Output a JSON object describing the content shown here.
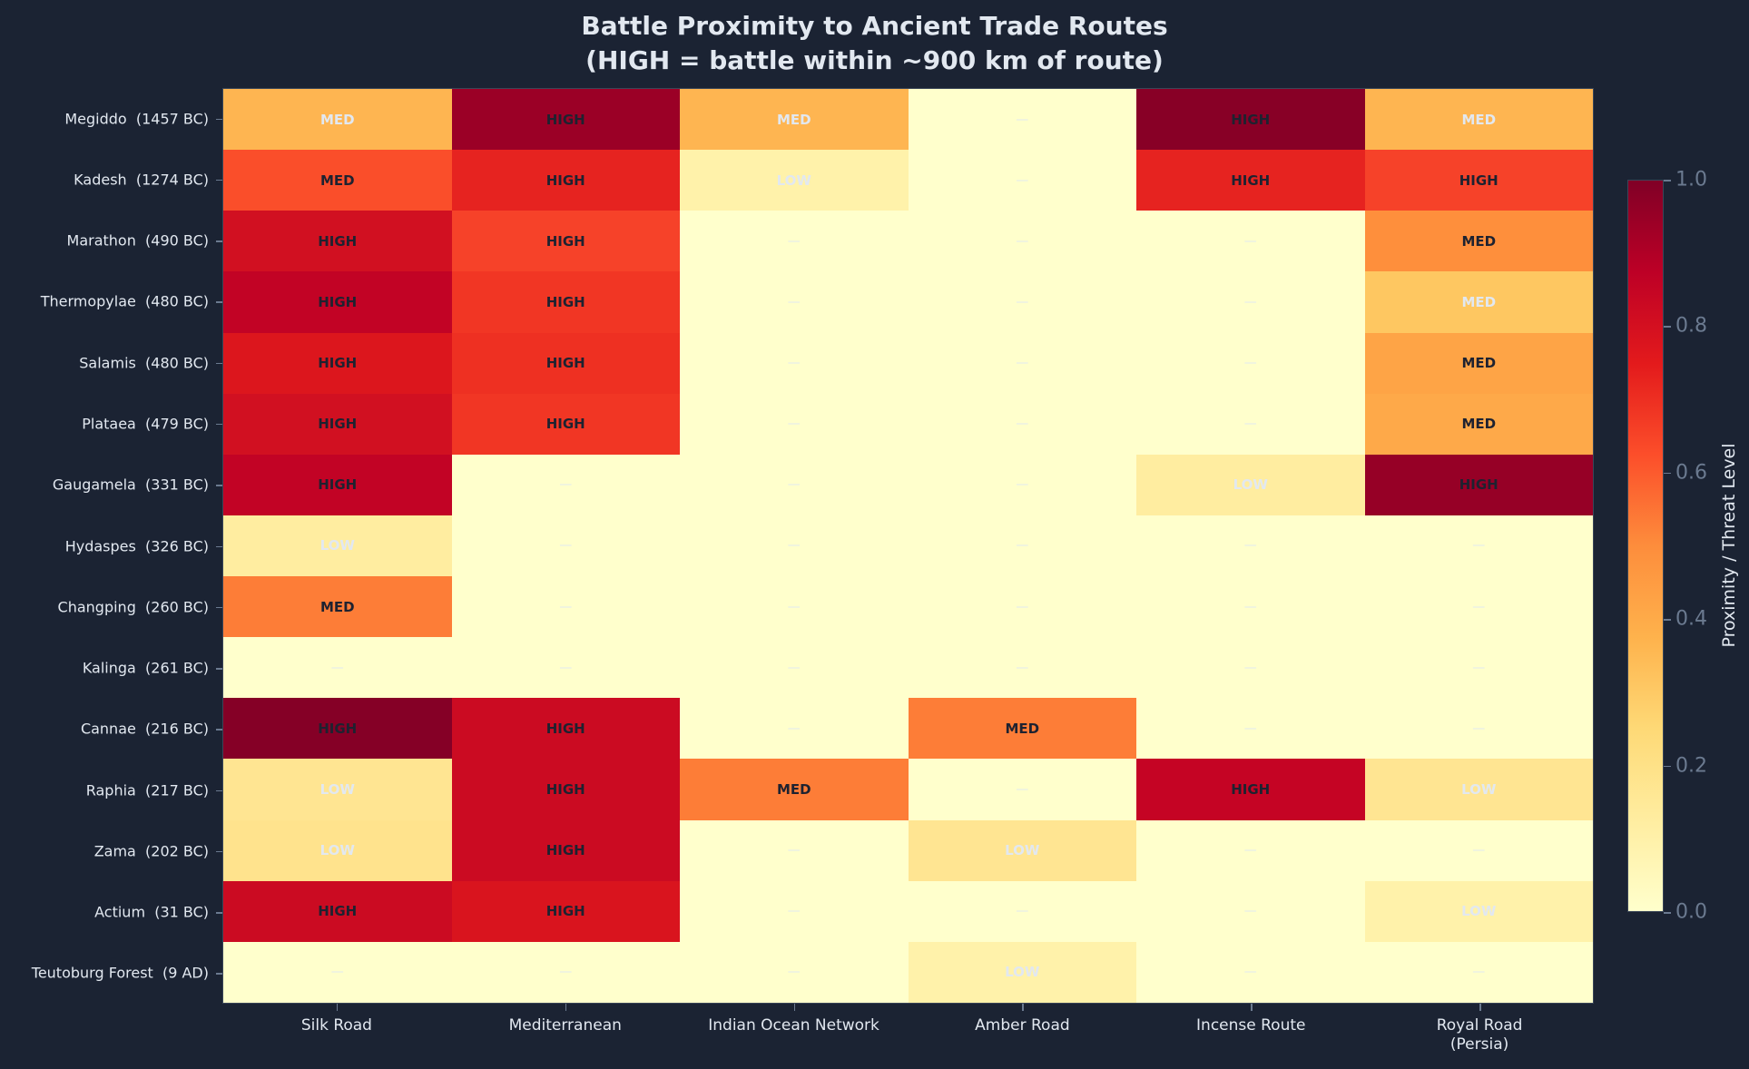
{
  "title_line1": "Battle Proximity to Ancient Trade Routes",
  "title_line2": "(HIGH = battle within ~900 km of route)",
  "colorbar": {
    "label": "Proximity / Threat Level",
    "ticks": [
      "0.0",
      "0.2",
      "0.4",
      "0.6",
      "0.8",
      "1.0"
    ],
    "colormap": "YlOrRd"
  },
  "colors": {
    "background": "#1b2333",
    "text_light": "#e2e8f0",
    "text_dark": "#1e2230",
    "axis": "#6b7a90"
  },
  "chart_data": {
    "type": "heatmap",
    "title": "Battle Proximity to Ancient Trade Routes\n(HIGH = battle within ~900 km of route)",
    "xlabel": "",
    "ylabel": "",
    "colorbar_label": "Proximity / Threat Level",
    "vmin": 0.0,
    "vmax": 1.0,
    "columns": [
      "Silk Road",
      "Mediterranean",
      "Indian Ocean Network",
      "Amber Road",
      "Incense Route",
      "Royal Road\n(Persia)"
    ],
    "rows": [
      "Megiddo  (1457 BC)",
      "Kadesh  (1274 BC)",
      "Marathon  (490 BC)",
      "Thermopylae  (480 BC)",
      "Salamis  (480 BC)",
      "Plataea  (479 BC)",
      "Gaugamela  (331 BC)",
      "Hydaspes  (326 BC)",
      "Changping  (260 BC)",
      "Kalinga  (261 BC)",
      "Cannae  (216 BC)",
      "Raphia  (217 BC)",
      "Zama  (202 BC)",
      "Actium  (31 BC)",
      "Teutoburg Forest  (9 AD)"
    ],
    "values": [
      [
        0.35,
        0.95,
        0.35,
        0.0,
        1.0,
        0.35
      ],
      [
        0.6,
        0.75,
        0.1,
        0.0,
        0.75,
        0.65
      ],
      [
        0.8,
        0.65,
        0.0,
        0.0,
        0.0,
        0.45
      ],
      [
        0.85,
        0.68,
        0.0,
        0.0,
        0.0,
        0.3
      ],
      [
        0.77,
        0.7,
        0.0,
        0.0,
        0.0,
        0.42
      ],
      [
        0.8,
        0.68,
        0.0,
        0.0,
        0.0,
        0.4
      ],
      [
        0.85,
        0.0,
        0.0,
        0.0,
        0.12,
        0.95
      ],
      [
        0.12,
        0.0,
        0.0,
        0.0,
        0.0,
        0.0
      ],
      [
        0.5,
        0.0,
        0.0,
        0.0,
        0.0,
        0.0
      ],
      [
        0.0,
        0.0,
        0.0,
        0.0,
        0.0,
        0.0
      ],
      [
        1.0,
        0.82,
        0.0,
        0.5,
        0.0,
        0.0
      ],
      [
        0.18,
        0.82,
        0.5,
        0.0,
        0.85,
        0.18
      ],
      [
        0.2,
        0.82,
        0.0,
        0.18,
        0.0,
        0.0
      ],
      [
        0.82,
        0.78,
        0.0,
        0.0,
        0.0,
        0.12
      ],
      [
        0.0,
        0.0,
        0.0,
        0.12,
        0.0,
        0.0
      ]
    ],
    "labels": [
      [
        "MED",
        "HIGH",
        "MED",
        "—",
        "HIGH",
        "MED"
      ],
      [
        "MED",
        "HIGH",
        "LOW",
        "—",
        "HIGH",
        "HIGH"
      ],
      [
        "HIGH",
        "HIGH",
        "—",
        "—",
        "—",
        "MED"
      ],
      [
        "HIGH",
        "HIGH",
        "—",
        "—",
        "—",
        "MED"
      ],
      [
        "HIGH",
        "HIGH",
        "—",
        "—",
        "—",
        "MED"
      ],
      [
        "HIGH",
        "HIGH",
        "—",
        "—",
        "—",
        "MED"
      ],
      [
        "HIGH",
        "—",
        "—",
        "—",
        "LOW",
        "HIGH"
      ],
      [
        "LOW",
        "—",
        "—",
        "—",
        "—",
        "—"
      ],
      [
        "MED",
        "—",
        "—",
        "—",
        "—",
        "—"
      ],
      [
        "—",
        "—",
        "—",
        "—",
        "—",
        "—"
      ],
      [
        "HIGH",
        "HIGH",
        "—",
        "MED",
        "—",
        "—"
      ],
      [
        "LOW",
        "HIGH",
        "MED",
        "—",
        "HIGH",
        "LOW"
      ],
      [
        "LOW",
        "HIGH",
        "—",
        "LOW",
        "—",
        "—"
      ],
      [
        "HIGH",
        "HIGH",
        "—",
        "—",
        "—",
        "LOW"
      ],
      [
        "—",
        "—",
        "—",
        "LOW",
        "—",
        "—"
      ]
    ],
    "cell_colors": [
      [
        "#feb551",
        "#9b0026",
        "#feb551",
        "#ffffcc",
        "#880026",
        "#feb551"
      ],
      [
        "#fa4e2a",
        "#e62320",
        "#fff2aa",
        "#ffffcc",
        "#e62320",
        "#f64229"
      ],
      [
        "#d11021",
        "#f64229",
        "#ffffcc",
        "#ffffcc",
        "#ffffcc",
        "#fe8f3c"
      ],
      [
        "#c20325",
        "#f13624",
        "#ffffcc",
        "#ffffcc",
        "#ffffcc",
        "#fec761"
      ],
      [
        "#dc161d",
        "#ee3022",
        "#ffffcc",
        "#ffffcc",
        "#ffffcc",
        "#fea446"
      ],
      [
        "#d11021",
        "#f13624",
        "#ffffcc",
        "#ffffcc",
        "#ffffcc",
        "#fea949"
      ],
      [
        "#c20325",
        "#ffffcc",
        "#ffffcc",
        "#ffffcc",
        "#ffeda0",
        "#960026"
      ],
      [
        "#ffeda0",
        "#ffffcc",
        "#ffffcc",
        "#ffffcc",
        "#ffffcc",
        "#ffffcc"
      ],
      [
        "#fd7d37",
        "#ffffcc",
        "#ffffcc",
        "#ffffcc",
        "#ffffcc",
        "#ffffcc"
      ],
      [
        "#ffffcc",
        "#ffffcc",
        "#ffffcc",
        "#ffffcc",
        "#ffffcc",
        "#ffffcc"
      ],
      [
        "#850026",
        "#cb0b22",
        "#ffffcc",
        "#fd7d37",
        "#ffffcc",
        "#ffffcc"
      ],
      [
        "#ffe592",
        "#cb0b22",
        "#fd7d37",
        "#ffffcc",
        "#c50424",
        "#ffe592"
      ],
      [
        "#ffe38d",
        "#cb0b22",
        "#ffffcc",
        "#ffe592",
        "#ffffcc",
        "#ffffcc"
      ],
      [
        "#cb0b22",
        "#d9141e",
        "#ffffcc",
        "#ffffcc",
        "#ffffcc",
        "#fff2aa"
      ],
      [
        "#ffffcc",
        "#ffffcc",
        "#ffffcc",
        "#fff2aa",
        "#ffffcc",
        "#ffffcc"
      ]
    ],
    "label_dark": [
      [
        false,
        true,
        false,
        false,
        true,
        false
      ],
      [
        true,
        true,
        false,
        false,
        true,
        true
      ],
      [
        true,
        true,
        false,
        false,
        false,
        true
      ],
      [
        true,
        true,
        false,
        false,
        false,
        false
      ],
      [
        true,
        true,
        false,
        false,
        false,
        true
      ],
      [
        true,
        true,
        false,
        false,
        false,
        true
      ],
      [
        true,
        false,
        false,
        false,
        false,
        true
      ],
      [
        false,
        false,
        false,
        false,
        false,
        false
      ],
      [
        true,
        false,
        false,
        false,
        false,
        false
      ],
      [
        false,
        false,
        false,
        false,
        false,
        false
      ],
      [
        true,
        true,
        false,
        true,
        false,
        false
      ],
      [
        false,
        true,
        true,
        false,
        true,
        false
      ],
      [
        false,
        true,
        false,
        false,
        false,
        false
      ],
      [
        true,
        true,
        false,
        false,
        false,
        false
      ],
      [
        false,
        false,
        false,
        false,
        false,
        false
      ]
    ]
  }
}
